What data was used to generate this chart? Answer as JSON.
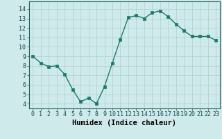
{
  "x": [
    0,
    1,
    2,
    3,
    4,
    5,
    6,
    7,
    8,
    9,
    10,
    11,
    12,
    13,
    14,
    15,
    16,
    17,
    18,
    19,
    20,
    21,
    22,
    23
  ],
  "y": [
    9.0,
    8.3,
    7.9,
    8.0,
    7.1,
    5.5,
    4.2,
    4.6,
    4.0,
    5.8,
    8.3,
    10.8,
    13.1,
    13.3,
    13.0,
    13.6,
    13.8,
    13.2,
    12.4,
    11.7,
    11.1,
    11.1,
    11.1,
    10.7
  ],
  "line_color": "#1a7a6e",
  "marker_color": "#1a7a6e",
  "bg_color": "#ceeaea",
  "grid_color": "#b0cece",
  "xlabel": "Humidex (Indice chaleur)",
  "ylim": [
    3.5,
    14.8
  ],
  "xlim": [
    -0.5,
    23.5
  ],
  "yticks": [
    4,
    5,
    6,
    7,
    8,
    9,
    10,
    11,
    12,
    13,
    14
  ],
  "xticks": [
    0,
    1,
    2,
    3,
    4,
    5,
    6,
    7,
    8,
    9,
    10,
    11,
    12,
    13,
    14,
    15,
    16,
    17,
    18,
    19,
    20,
    21,
    22,
    23
  ],
  "xtick_labels": [
    "0",
    "1",
    "2",
    "3",
    "4",
    "5",
    "6",
    "7",
    "8",
    "9",
    "10",
    "11",
    "12",
    "13",
    "14",
    "15",
    "16",
    "17",
    "18",
    "19",
    "20",
    "21",
    "22",
    "23"
  ],
  "label_fontsize": 7.5,
  "tick_fontsize": 6,
  "marker_size": 2.5,
  "line_width": 1.0
}
